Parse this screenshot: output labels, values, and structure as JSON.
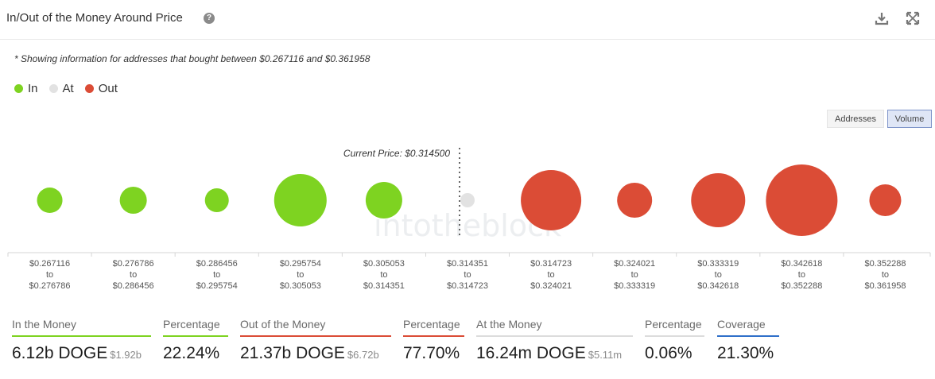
{
  "header": {
    "title": "In/Out of the Money Around Price",
    "help": "?"
  },
  "note": "* Showing information for addresses that bought between $0.267116 and $0.361958",
  "legend": [
    {
      "label": "In",
      "color": "#7ed321"
    },
    {
      "label": "At",
      "color": "#e2e2e2"
    },
    {
      "label": "Out",
      "color": "#db4c36"
    }
  ],
  "toggles": {
    "addresses": "Addresses",
    "volume": "Volume"
  },
  "chart_data": {
    "type": "scatter",
    "encoding": "bubble size = volume",
    "current_price_label": "Current Price: $0.314500",
    "current_price": 0.3145,
    "watermark": "intotheblock",
    "series": [
      {
        "name": "In",
        "color": "#7ed321"
      },
      {
        "name": "At",
        "color": "#e2e2e2"
      },
      {
        "name": "Out",
        "color": "#db4c36"
      }
    ],
    "buckets": [
      {
        "from": "$0.267116",
        "to": "$0.276786",
        "status": "In",
        "size": 16
      },
      {
        "from": "$0.276786",
        "to": "$0.286456",
        "status": "In",
        "size": 17
      },
      {
        "from": "$0.286456",
        "to": "$0.295754",
        "status": "In",
        "size": 15
      },
      {
        "from": "$0.295754",
        "to": "$0.305053",
        "status": "In",
        "size": 33
      },
      {
        "from": "$0.305053",
        "to": "$0.314351",
        "status": "In",
        "size": 23
      },
      {
        "from": "$0.314351",
        "to": "$0.314723",
        "status": "At",
        "size": 9
      },
      {
        "from": "$0.314723",
        "to": "$0.324021",
        "status": "Out",
        "size": 38
      },
      {
        "from": "$0.324021",
        "to": "$0.333319",
        "status": "Out",
        "size": 22
      },
      {
        "from": "$0.333319",
        "to": "$0.342618",
        "status": "Out",
        "size": 34
      },
      {
        "from": "$0.342618",
        "to": "$0.352288",
        "status": "Out",
        "size": 45
      },
      {
        "from": "$0.352288",
        "to": "$0.361958",
        "status": "Out",
        "size": 20
      }
    ],
    "range_word": "to"
  },
  "stats": {
    "in_label": "In the Money",
    "in_value": "6.12b DOGE",
    "in_usd": "$1.92b",
    "in_pct_label": "Percentage",
    "in_pct": "22.24%",
    "out_label": "Out of the Money",
    "out_value": "21.37b DOGE",
    "out_usd": "$6.72b",
    "out_pct_label": "Percentage",
    "out_pct": "77.70%",
    "at_label": "At the Money",
    "at_value": "16.24m DOGE",
    "at_usd": "$5.11m",
    "at_pct_label": "Percentage",
    "at_pct": "0.06%",
    "coverage_label": "Coverage",
    "coverage": "21.30%",
    "colors": {
      "in": "#7ed321",
      "out": "#db4c36",
      "at": "#dcdcdc",
      "pct": "#cfcfcf",
      "coverage": "#2f6fc9"
    }
  }
}
